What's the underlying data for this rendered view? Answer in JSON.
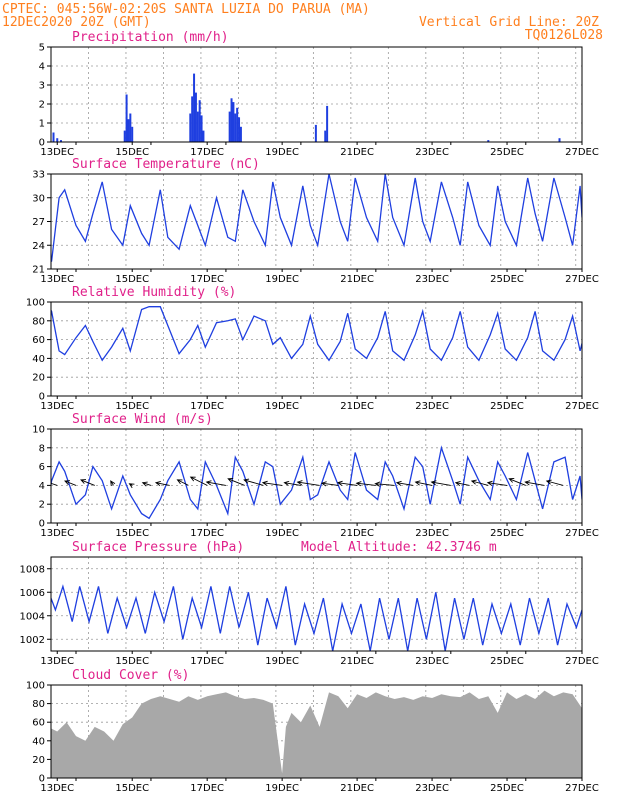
{
  "header": {
    "line1": "CPTEC:   045:56W-02:20S  SANTA LUZIA DO PARUA (MA)",
    "line2_left": "12DEC2020 20Z (GMT)",
    "line2_right": "Vertical Grid Line: 20Z",
    "line3_right": "TQ0126L028"
  },
  "x_axis": {
    "start": "2020-12-12T20Z",
    "end": "2020-12-27T00Z",
    "tick_labels": [
      "13DEC",
      "15DEC",
      "17DEC",
      "19DEC",
      "21DEC",
      "23DEC",
      "25DEC",
      "27DEC"
    ],
    "tick_days": [
      13,
      15,
      17,
      19,
      21,
      23,
      25,
      27
    ]
  },
  "colors": {
    "series": "#1f3fe0",
    "cloud": "#a8a8a8",
    "title": "#e0218a",
    "header": "#ff7f1e"
  },
  "panels": {
    "precip": {
      "title": "Precipitation (mm/h)",
      "ylim": [
        0,
        5
      ],
      "yticks": [
        "0",
        "1",
        "2",
        "3",
        "4",
        "5"
      ]
    },
    "temp": {
      "title": "Surface Temperature (nC)",
      "ylim": [
        21,
        33
      ],
      "yticks": [
        "21",
        "24",
        "27",
        "30",
        "33"
      ]
    },
    "rh": {
      "title": "Relative Humidity (%)",
      "ylim": [
        0,
        100
      ],
      "yticks": [
        "0",
        "20",
        "40",
        "60",
        "80",
        "100"
      ]
    },
    "wind": {
      "title": "Surface Wind (m/s)",
      "ylim": [
        0,
        10
      ],
      "yticks": [
        "0",
        "2",
        "4",
        "6",
        "8",
        "10"
      ]
    },
    "pres": {
      "title": "Surface Pressure (hPa)",
      "subtitle": "Model Altitude: 42.3746 m",
      "ylim": [
        1001,
        1009
      ],
      "yticks": [
        "1002",
        "1004",
        "1006",
        "1008"
      ]
    },
    "cloud": {
      "title": "Cloud Cover (%)",
      "ylim": [
        0,
        100
      ],
      "yticks": [
        "0",
        "20",
        "40",
        "60",
        "80",
        "100"
      ]
    }
  },
  "chart_data": [
    {
      "type": "bar",
      "title": "Precipitation (mm/h)",
      "ylim": [
        0,
        5
      ],
      "x_unit": "day of December 2020",
      "x": [
        12.9,
        13.0,
        13.1,
        14.8,
        14.85,
        14.9,
        14.95,
        15.0,
        16.55,
        16.6,
        16.65,
        16.7,
        16.75,
        16.8,
        16.85,
        16.9,
        17.6,
        17.65,
        17.7,
        17.75,
        17.8,
        17.85,
        17.9,
        19.9,
        20.15,
        20.2,
        24.5,
        26.4
      ],
      "values": [
        0.5,
        0.2,
        0.1,
        0.6,
        2.5,
        1.2,
        1.5,
        0.8,
        1.5,
        2.4,
        3.6,
        2.6,
        1.6,
        2.2,
        1.4,
        0.6,
        1.6,
        2.3,
        2.1,
        1.5,
        1.8,
        1.3,
        0.8,
        0.9,
        0.6,
        1.9,
        0.1,
        0.2
      ]
    },
    {
      "type": "line",
      "title": "Surface Temperature (nC)",
      "ylim": [
        21,
        33
      ],
      "x_unit": "day of December 2020",
      "x": [
        12.0,
        12.5,
        12.7,
        12.85,
        13.05,
        13.2,
        13.5,
        13.75,
        13.95,
        14.2,
        14.45,
        14.75,
        14.95,
        15.25,
        15.45,
        15.75,
        15.95,
        16.25,
        16.55,
        16.75,
        16.95,
        17.25,
        17.55,
        17.75,
        17.95,
        18.25,
        18.55,
        18.75,
        18.95,
        19.25,
        19.55,
        19.75,
        19.95,
        20.25,
        20.55,
        20.75,
        20.95,
        21.25,
        21.55,
        21.75,
        21.95,
        22.25,
        22.55,
        22.75,
        22.95,
        23.25,
        23.55,
        23.75,
        23.95,
        24.25,
        24.55,
        24.75,
        24.95,
        25.25,
        25.55,
        25.75,
        25.95,
        26.25,
        26.55,
        26.75,
        26.95,
        27.0
      ],
      "values": [
        23.0,
        21.5,
        21.5,
        22.0,
        30.0,
        31.0,
        26.5,
        24.5,
        28.0,
        32.0,
        26.0,
        24.0,
        29.0,
        25.5,
        24.0,
        31.0,
        25.0,
        23.5,
        29.0,
        26.5,
        24.0,
        30.0,
        25.0,
        24.5,
        31.0,
        27.0,
        24.0,
        32.0,
        27.5,
        24.0,
        31.5,
        26.5,
        24.0,
        33.0,
        27.0,
        24.5,
        32.5,
        27.5,
        24.5,
        33.0,
        27.5,
        24.0,
        32.5,
        27.0,
        24.5,
        32.0,
        27.5,
        24.0,
        32.0,
        26.5,
        24.0,
        31.5,
        27.0,
        24.0,
        32.5,
        28.0,
        24.5,
        32.5,
        27.5,
        24.0,
        31.5,
        27.5
      ]
    },
    {
      "type": "line",
      "title": "Relative Humidity (%)",
      "ylim": [
        0,
        100
      ],
      "x_unit": "day of December 2020",
      "x": [
        12.0,
        12.5,
        12.7,
        12.85,
        13.05,
        13.2,
        13.5,
        13.75,
        13.95,
        14.2,
        14.45,
        14.75,
        14.95,
        15.25,
        15.45,
        15.75,
        15.95,
        16.25,
        16.55,
        16.75,
        16.95,
        17.25,
        17.55,
        17.75,
        17.95,
        18.25,
        18.55,
        18.75,
        18.95,
        19.25,
        19.55,
        19.75,
        19.95,
        20.25,
        20.55,
        20.75,
        20.95,
        21.25,
        21.55,
        21.75,
        21.95,
        22.25,
        22.55,
        22.75,
        22.95,
        23.25,
        23.55,
        23.75,
        23.95,
        24.25,
        24.55,
        24.75,
        24.95,
        25.25,
        25.55,
        25.75,
        25.95,
        26.25,
        26.55,
        26.75,
        26.95,
        27.0
      ],
      "values": [
        100,
        100,
        100,
        90,
        48,
        44,
        62,
        75,
        58,
        38,
        52,
        72,
        48,
        92,
        95,
        95,
        75,
        45,
        60,
        75,
        52,
        78,
        80,
        82,
        60,
        85,
        80,
        55,
        62,
        40,
        55,
        85,
        55,
        38,
        58,
        88,
        50,
        40,
        62,
        90,
        48,
        38,
        65,
        90,
        50,
        38,
        62,
        90,
        52,
        38,
        65,
        88,
        50,
        38,
        62,
        90,
        48,
        38,
        60,
        85,
        48,
        56
      ]
    },
    {
      "type": "line",
      "title": "Surface Wind (m/s)",
      "ylim": [
        0,
        10
      ],
      "x_unit": "day of December 2020",
      "x": [
        12.0,
        12.5,
        12.7,
        12.85,
        13.05,
        13.2,
        13.5,
        13.75,
        13.95,
        14.2,
        14.45,
        14.75,
        14.95,
        15.25,
        15.45,
        15.75,
        15.95,
        16.25,
        16.55,
        16.75,
        16.95,
        17.25,
        17.55,
        17.75,
        17.95,
        18.25,
        18.55,
        18.75,
        18.95,
        19.25,
        19.55,
        19.75,
        19.95,
        20.25,
        20.55,
        20.75,
        20.95,
        21.25,
        21.55,
        21.75,
        21.95,
        22.25,
        22.55,
        22.75,
        22.95,
        23.25,
        23.55,
        23.75,
        23.95,
        24.25,
        24.55,
        24.75,
        24.95,
        25.25,
        25.55,
        25.75,
        25.95,
        26.25,
        26.55,
        26.75,
        26.95,
        27.0
      ],
      "values": [
        3.5,
        1.5,
        0.5,
        4.5,
        6.5,
        5.5,
        2.0,
        3.0,
        6.0,
        4.5,
        1.5,
        5.0,
        3.0,
        1.0,
        0.5,
        2.5,
        4.5,
        6.5,
        2.5,
        1.5,
        6.5,
        4.0,
        1.0,
        7.0,
        5.5,
        2.0,
        6.5,
        6.0,
        2.0,
        3.5,
        7.0,
        2.5,
        3.0,
        6.5,
        3.5,
        2.5,
        7.5,
        3.5,
        2.5,
        6.5,
        5.0,
        1.5,
        7.0,
        6.0,
        2.0,
        8.0,
        4.5,
        2.0,
        7.0,
        4.5,
        2.5,
        6.5,
        5.0,
        2.5,
        7.5,
        4.5,
        1.5,
        6.5,
        7.0,
        2.5,
        5.0,
        2.5
      ]
    },
    {
      "type": "line",
      "title": "Surface Pressure (hPa)",
      "ylim": [
        1001,
        1009
      ],
      "x_unit": "day of December 2020",
      "x": [
        12.0,
        12.35,
        12.55,
        12.75,
        12.95,
        13.15,
        13.4,
        13.6,
        13.85,
        14.1,
        14.35,
        14.6,
        14.85,
        15.1,
        15.35,
        15.6,
        15.85,
        16.1,
        16.35,
        16.6,
        16.85,
        17.1,
        17.35,
        17.6,
        17.85,
        18.1,
        18.35,
        18.6,
        18.85,
        19.1,
        19.35,
        19.6,
        19.85,
        20.1,
        20.35,
        20.6,
        20.85,
        21.1,
        21.35,
        21.6,
        21.85,
        22.1,
        22.35,
        22.6,
        22.85,
        23.1,
        23.35,
        23.6,
        23.85,
        24.1,
        24.35,
        24.6,
        24.85,
        25.1,
        25.35,
        25.6,
        25.85,
        26.1,
        26.35,
        26.6,
        26.85,
        27.0
      ],
      "values": [
        1006.0,
        1007.2,
        1007.5,
        1006.2,
        1004.5,
        1006.5,
        1003.5,
        1006.5,
        1003.5,
        1006.5,
        1002.5,
        1005.5,
        1003.0,
        1005.5,
        1002.5,
        1006.0,
        1003.5,
        1006.5,
        1002.0,
        1005.5,
        1003.0,
        1006.5,
        1002.5,
        1006.5,
        1003.0,
        1006.0,
        1001.5,
        1005.5,
        1003.0,
        1006.5,
        1001.5,
        1005.0,
        1002.5,
        1005.5,
        1001.0,
        1005.0,
        1002.5,
        1005.0,
        1001.0,
        1005.5,
        1002.0,
        1005.5,
        1001.0,
        1005.5,
        1002.0,
        1006.0,
        1001.0,
        1005.5,
        1002.0,
        1005.5,
        1001.5,
        1005.0,
        1002.5,
        1005.0,
        1001.5,
        1005.5,
        1002.5,
        1005.5,
        1001.5,
        1005.0,
        1003.0,
        1004.5
      ]
    },
    {
      "type": "area",
      "title": "Cloud Cover (%)",
      "ylim": [
        0,
        100
      ],
      "x_unit": "day of December 2020",
      "x": [
        12.0,
        12.25,
        12.5,
        12.75,
        13.0,
        13.25,
        13.5,
        13.75,
        14.0,
        14.25,
        14.5,
        14.75,
        15.0,
        15.25,
        15.5,
        15.75,
        16.0,
        16.25,
        16.5,
        16.75,
        17.0,
        17.25,
        17.5,
        17.75,
        18.0,
        18.25,
        18.5,
        18.75,
        19.0,
        19.1,
        19.25,
        19.5,
        19.75,
        20.0,
        20.25,
        20.5,
        20.75,
        21.0,
        21.25,
        21.5,
        21.75,
        22.0,
        22.25,
        22.5,
        22.75,
        23.0,
        23.25,
        23.5,
        23.75,
        24.0,
        24.25,
        24.5,
        24.75,
        25.0,
        25.25,
        25.5,
        25.75,
        26.0,
        26.25,
        26.5,
        26.75,
        27.0
      ],
      "values": [
        45,
        42,
        48,
        55,
        50,
        60,
        45,
        40,
        55,
        50,
        40,
        58,
        65,
        80,
        85,
        88,
        85,
        82,
        88,
        84,
        88,
        90,
        92,
        88,
        85,
        86,
        84,
        80,
        5,
        55,
        70,
        60,
        78,
        55,
        92,
        88,
        75,
        90,
        86,
        92,
        88,
        85,
        87,
        84,
        88,
        86,
        90,
        88,
        87,
        92,
        85,
        88,
        70,
        92,
        85,
        90,
        85,
        94,
        88,
        92,
        90,
        75
      ]
    },
    {
      "type": "wind_vectors",
      "title": "Surface Wind (m/s)",
      "x_unit": "day of December 2020",
      "note": "arrows drawn mid-panel showing direction; u,v in m/s",
      "x": [
        12.1,
        12.55,
        13.0,
        13.5,
        14.0,
        14.5,
        15.0,
        15.5,
        16.0,
        16.5,
        17.0,
        17.5,
        18.0,
        18.5,
        19.0,
        19.5,
        20.0,
        20.5,
        21.0,
        21.5,
        22.0,
        22.5,
        23.0,
        23.5,
        24.0,
        24.5,
        25.0,
        25.5,
        26.0,
        26.5
      ],
      "u": [
        -4.0,
        -2.5,
        -3.0,
        -2.0,
        -2.5,
        -0.5,
        -0.5,
        -1.5,
        -2.5,
        -2.0,
        -3.0,
        -3.5,
        -3.0,
        -3.5,
        -3.5,
        -3.0,
        -4.0,
        -3.0,
        -3.5,
        -3.5,
        -3.5,
        -3.0,
        -3.0,
        -3.5,
        -2.5,
        -3.0,
        -3.5,
        -3.0,
        -3.5,
        -3.0
      ],
      "v": [
        -0.2,
        -0.3,
        1.0,
        0.8,
        1.0,
        0.8,
        0.3,
        0.5,
        0.5,
        1.0,
        1.5,
        0.6,
        1.2,
        1.0,
        0.5,
        0.5,
        0.6,
        0.4,
        0.5,
        0.4,
        0.3,
        0.5,
        0.6,
        0.6,
        0.5,
        0.8,
        0.5,
        1.2,
        0.6,
        0.8
      ]
    }
  ]
}
